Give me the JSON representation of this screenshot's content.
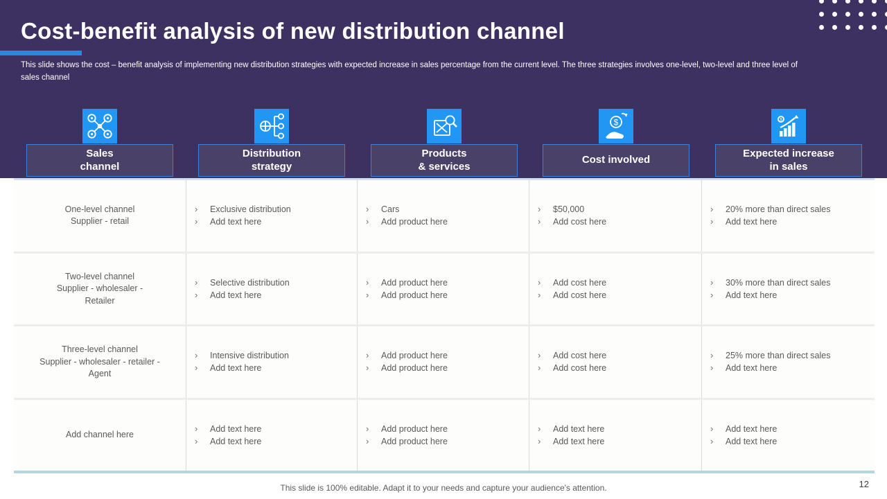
{
  "slide": {
    "title": "Cost-benefit analysis of new distribution channel",
    "description_line1": "This slide shows the cost – benefit analysis of implementing new distribution strategies with expected increase in sales percentage from the current level.  The three strategies involves one-level, two-level and three level of",
    "description_line2": "sales channel",
    "footer_note": "This slide is 100% editable. Adapt it to your needs and capture your audience's attention.",
    "page_number": "12"
  },
  "columns": [
    {
      "line1": "Sales",
      "line2": "channel",
      "icon": "network-nodes-icon"
    },
    {
      "line1": "Distribution",
      "line2": "strategy",
      "icon": "hierarchy-icon"
    },
    {
      "line1": "Products",
      "line2": "& services",
      "icon": "product-box-magnifier-icon"
    },
    {
      "line1": "Cost involved",
      "icon": "hand-dollar-icon"
    },
    {
      "line1": "Expected increase",
      "line2": "in sales",
      "icon": "growth-chart-icon"
    }
  ],
  "table": {
    "bullet": "›",
    "rows": [
      {
        "channel": [
          "One-level  channel",
          "Supplier - retail"
        ],
        "strategy": [
          "Exclusive distribution",
          "Add text here"
        ],
        "products": [
          "Cars",
          "Add product here"
        ],
        "cost": [
          "$50,000",
          "Add cost here"
        ],
        "increase": [
          "20% more than direct sales",
          "Add text here"
        ]
      },
      {
        "channel": [
          "Two-level  channel",
          "Supplier  - wholesaler -",
          "Retailer"
        ],
        "strategy": [
          "Selective distribution",
          "Add text here"
        ],
        "products": [
          "Add product here",
          "Add product here"
        ],
        "cost": [
          "Add cost here",
          "Add cost here"
        ],
        "increase": [
          "30% more than direct sales",
          "Add text here"
        ]
      },
      {
        "channel": [
          "Three-level  channel",
          "Supplier  -  wholesaler  -  retailer -",
          "Agent"
        ],
        "strategy": [
          "Intensive  distribution",
          "Add text here"
        ],
        "products": [
          "Add product here",
          "Add product here"
        ],
        "cost": [
          "Add cost here",
          "Add cost here"
        ],
        "increase": [
          "25% more than direct sales",
          "Add text here"
        ]
      },
      {
        "channel": [
          "Add channel here"
        ],
        "strategy": [
          "Add text here",
          "Add text here"
        ],
        "products": [
          "Add product here",
          "Add product here"
        ],
        "cost": [
          "Add text here",
          "Add text here"
        ],
        "increase": [
          "Add text here",
          "Add text here"
        ]
      }
    ]
  },
  "colors": {
    "band_purple": "#3d3161",
    "header_box_purple": "#4a4169",
    "header_box_border": "#3f7fd4",
    "icon_blue": "#2196f3",
    "accent_blue": "#2e86e0",
    "table_top_border": "#cfe1f0",
    "table_bottom_border": "#b3d6e0",
    "cell_text": "#595959"
  }
}
